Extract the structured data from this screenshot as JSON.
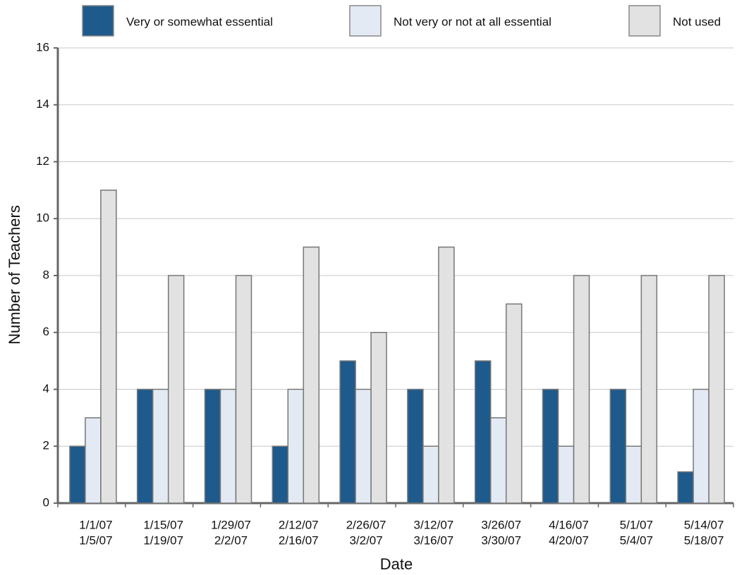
{
  "chart_data": {
    "type": "bar",
    "x_label": "Date",
    "y_label": "Number of Teachers",
    "categories": [
      [
        "1/1/07",
        "1/5/07"
      ],
      [
        "1/15/07",
        "1/19/07"
      ],
      [
        "1/29/07",
        "2/2/07"
      ],
      [
        "2/12/07",
        "2/16/07"
      ],
      [
        "2/26/07",
        "3/2/07"
      ],
      [
        "3/12/07",
        "3/16/07"
      ],
      [
        "3/26/07",
        "3/30/07"
      ],
      [
        "4/16/07",
        "4/20/07"
      ],
      [
        "5/1/07",
        "5/4/07"
      ],
      [
        "5/14/07",
        "5/18/07"
      ]
    ],
    "series": [
      {
        "name": "Very or somewhat essential",
        "color": "#1f5a8c",
        "values": [
          2,
          4,
          4,
          2,
          5,
          4,
          5,
          4,
          4,
          1.1
        ]
      },
      {
        "name": "Not very or not at all essential",
        "color": "#e3eaf4",
        "values": [
          3,
          4,
          4,
          4,
          4,
          2,
          3,
          2,
          2,
          4
        ]
      },
      {
        "name": "Not used",
        "color": "#e2e2e2",
        "values": [
          11,
          8,
          8,
          9,
          6,
          9,
          7,
          8,
          8,
          8
        ]
      }
    ],
    "ylim": [
      0,
      16
    ],
    "yticks": [
      0,
      2,
      4,
      6,
      8,
      10,
      12,
      14,
      16
    ],
    "grid": true,
    "legend": "top"
  }
}
